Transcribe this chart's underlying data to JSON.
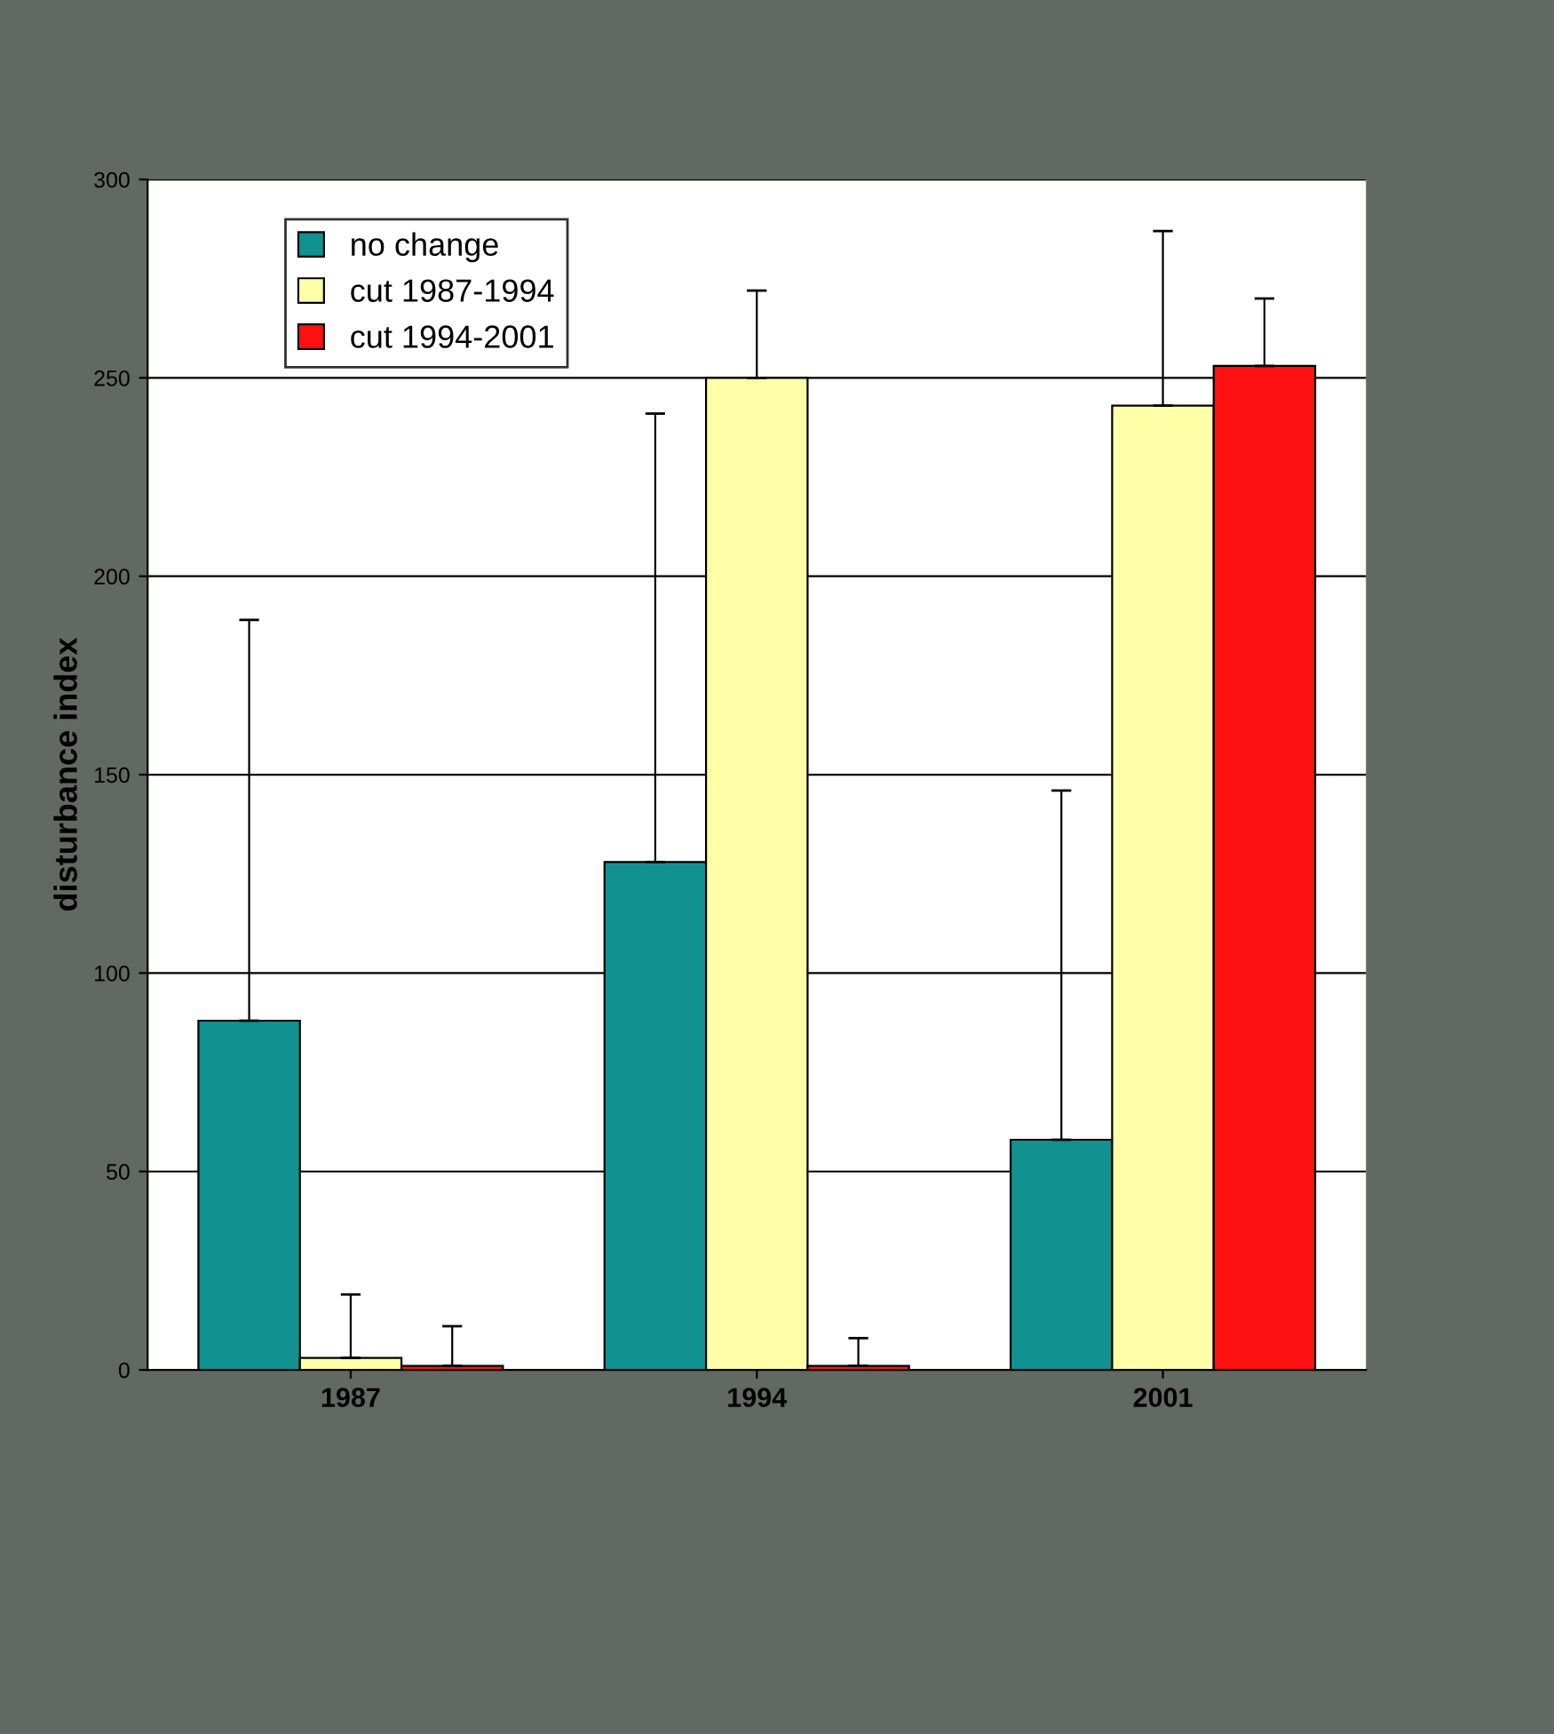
{
  "chart_data": {
    "type": "bar",
    "ylabel": "disturbance index",
    "categories": [
      "1987",
      "1994",
      "2001"
    ],
    "series": [
      {
        "name": "no change",
        "color": "#129191",
        "values": [
          88,
          128,
          58
        ],
        "errors": [
          [
            88,
            189
          ],
          [
            128,
            241
          ],
          [
            58,
            146
          ]
        ]
      },
      {
        "name": "cut 1987-1994",
        "color": "#ffffa8",
        "values": [
          3,
          250,
          243
        ],
        "errors": [
          [
            3,
            19
          ],
          [
            250,
            272
          ],
          [
            243,
            287
          ]
        ]
      },
      {
        "name": "cut 1994-2001",
        "color": "#ff1111",
        "values": [
          1,
          1,
          253
        ],
        "errors": [
          [
            1,
            11
          ],
          [
            1,
            8
          ],
          [
            253,
            270
          ]
        ]
      }
    ],
    "ylim": [
      0,
      300
    ],
    "yticks": [
      0,
      50,
      100,
      150,
      200,
      250,
      300
    ],
    "grid": "y",
    "legend": "top left"
  }
}
